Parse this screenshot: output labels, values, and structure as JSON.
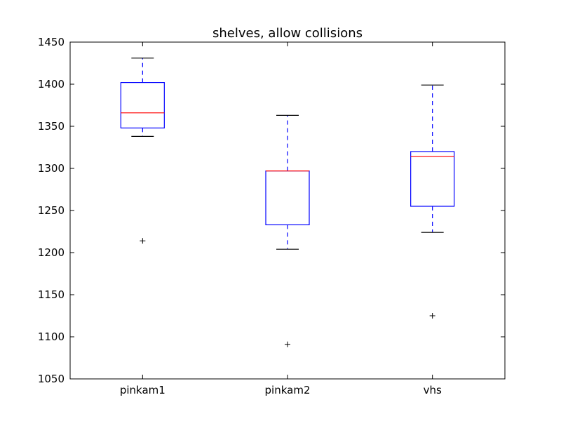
{
  "chart_data": {
    "type": "box",
    "title": "shelves, allow collisions",
    "xlabel": "",
    "ylabel": "",
    "ylim": [
      1050,
      1450
    ],
    "yticks": [
      1050,
      1100,
      1150,
      1200,
      1250,
      1300,
      1350,
      1400,
      1450
    ],
    "categories": [
      "pinkam1",
      "pinkam2",
      "vhs"
    ],
    "boxes": [
      {
        "category": "pinkam1",
        "whisker_low": 1338,
        "q1": 1348,
        "median": 1366,
        "q3": 1402,
        "whisker_high": 1431,
        "outliers": [
          1214
        ]
      },
      {
        "category": "pinkam2",
        "whisker_low": 1204,
        "q1": 1233,
        "median": 1297,
        "q3": 1297,
        "whisker_high": 1363,
        "outliers": [
          1091
        ]
      },
      {
        "category": "vhs",
        "whisker_low": 1224,
        "q1": 1255,
        "median": 1314,
        "q3": 1320,
        "whisker_high": 1399,
        "outliers": [
          1125
        ]
      }
    ],
    "grid": false,
    "colors": {
      "box": "#0000ff",
      "median": "#ff0000",
      "whisker_cap": "#000000",
      "flier": "#000000"
    }
  }
}
